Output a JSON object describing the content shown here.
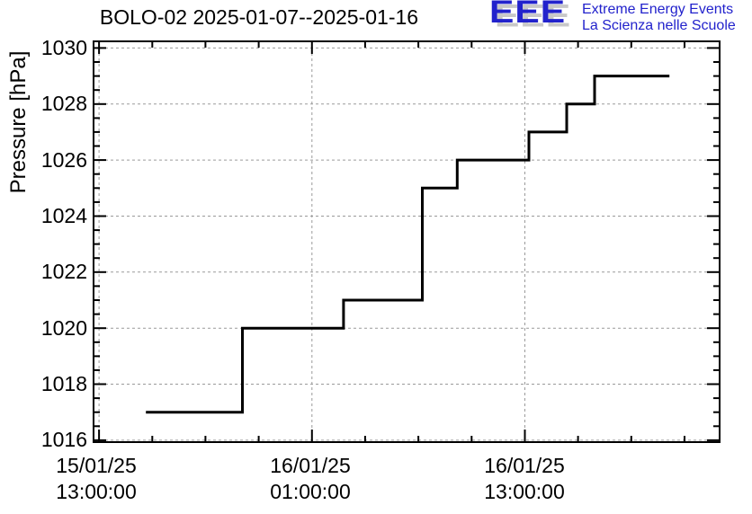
{
  "header": {
    "logo": {
      "acronym": "EEE",
      "line1": "Extreme Energy Events",
      "line2": "La Scienza nelle Scuole",
      "accent_color": "#2222cc",
      "shadow_color": "#c8c8c8"
    }
  },
  "chart_data": {
    "type": "line",
    "step": true,
    "title": "BOLO-02 2025-01-07--2025-01-16",
    "xlabel": "",
    "ylabel": "Pressure [hPa]",
    "grid": {
      "show": true,
      "style": "dashed",
      "color": "#9a9a9a"
    },
    "legend": "none",
    "x_axis": {
      "kind": "time",
      "reference_time": "15/01/25 13:00:00",
      "lim_hours": [
        -0.36,
        35.03
      ],
      "major_ticks_hours": [
        0,
        12,
        24
      ],
      "minor_step_hours": 3,
      "tick_labels": [
        {
          "date": "15/01/25",
          "time": "13:00:00"
        },
        {
          "date": "16/01/25",
          "time": "01:00:00"
        },
        {
          "date": "16/01/25",
          "time": "13:00:00"
        }
      ]
    },
    "y_axis": {
      "lim": [
        1015.9,
        1030.27
      ],
      "major_ticks": [
        1016,
        1018,
        1020,
        1022,
        1024,
        1026,
        1028,
        1030
      ],
      "minor_step": 0.5,
      "tick_labels": [
        "1016",
        "1018",
        "1020",
        "1022",
        "1024",
        "1026",
        "1028",
        "1030"
      ]
    },
    "series": [
      {
        "name": "pressure",
        "color": "#000000",
        "line_width": 3,
        "points_hours_hpa": [
          [
            2.64,
            1017
          ],
          [
            8.08,
            1020
          ],
          [
            13.78,
            1021
          ],
          [
            18.22,
            1025
          ],
          [
            20.19,
            1026
          ],
          [
            24.23,
            1027
          ],
          [
            26.36,
            1028
          ],
          [
            27.93,
            1029
          ],
          [
            32.15,
            1029
          ]
        ],
        "points_readable": [
          {
            "time": "2025-01-15 15:38",
            "pressure_hpa": 1017
          },
          {
            "time": "2025-01-15 21:05",
            "pressure_hpa": 1020
          },
          {
            "time": "2025-01-16 02:47",
            "pressure_hpa": 1021
          },
          {
            "time": "2025-01-16 07:13",
            "pressure_hpa": 1025
          },
          {
            "time": "2025-01-16 09:11",
            "pressure_hpa": 1026
          },
          {
            "time": "2025-01-16 13:14",
            "pressure_hpa": 1027
          },
          {
            "time": "2025-01-16 15:22",
            "pressure_hpa": 1028
          },
          {
            "time": "2025-01-16 16:56",
            "pressure_hpa": 1029
          },
          {
            "time": "2025-01-16 21:09",
            "pressure_hpa": 1029
          }
        ]
      }
    ]
  }
}
